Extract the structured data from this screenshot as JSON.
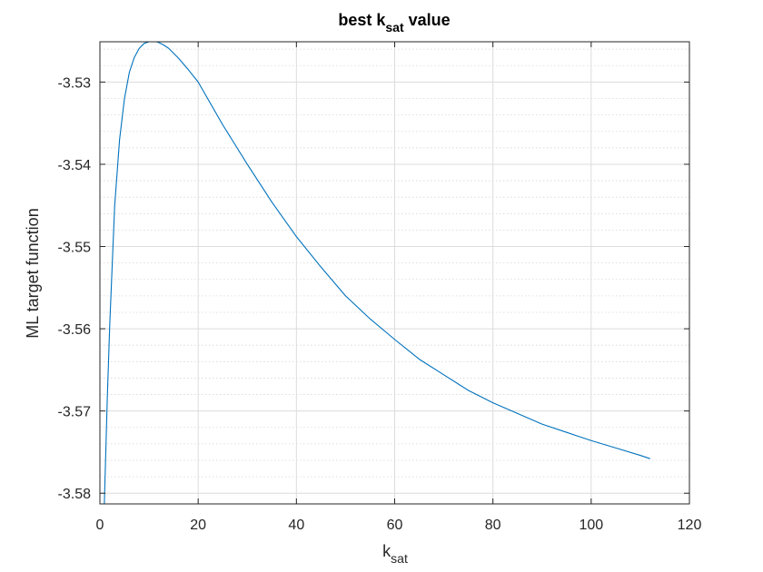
{
  "chart_data": {
    "type": "line",
    "title": {
      "main": "best k",
      "sub": "sat",
      "suffix": " value"
    },
    "xlabel": {
      "main": "k",
      "sub": "sat"
    },
    "ylabel": "ML target function",
    "xlim": [
      0,
      120
    ],
    "ylim": [
      -3.5813,
      -3.5251
    ],
    "xticks": [
      0,
      20,
      40,
      60,
      80,
      100,
      120
    ],
    "xtick_labels": [
      "0",
      "20",
      "40",
      "60",
      "80",
      "100",
      "120"
    ],
    "yticks": [
      -3.58,
      -3.57,
      -3.56,
      -3.55,
      -3.54,
      -3.53
    ],
    "ytick_labels": [
      "-3.58",
      "-3.57",
      "-3.56",
      "-3.55",
      "-3.54",
      "-3.53"
    ],
    "y_minor_step": 0.002,
    "grid": true,
    "minor_grid_y": true,
    "box": true,
    "series": [
      {
        "color": "#0072BD",
        "x": [
          0.9,
          1.5,
          2,
          3,
          4,
          5,
          6,
          7,
          8,
          9,
          10,
          11,
          11.5,
          12,
          13,
          14,
          16,
          18,
          20,
          25,
          30,
          35,
          40,
          45,
          50,
          55,
          60,
          65,
          70,
          75,
          80,
          85,
          90,
          95,
          100,
          105,
          110,
          112
        ],
        "y": [
          -3.5813,
          -3.5685,
          -3.5595,
          -3.5451,
          -3.537,
          -3.532,
          -3.5288,
          -3.527,
          -3.5259,
          -3.5253,
          -3.5251,
          -3.5251,
          -3.5251,
          -3.5252,
          -3.5255,
          -3.5259,
          -3.5271,
          -3.5285,
          -3.53,
          -3.5352,
          -3.54,
          -3.5446,
          -3.5488,
          -3.5525,
          -3.556,
          -3.5588,
          -3.5613,
          -3.5637,
          -3.5656,
          -3.5675,
          -3.569,
          -3.5703,
          -3.5716,
          -3.5726,
          -3.5736,
          -3.5745,
          -3.5754,
          -3.5758
        ]
      }
    ]
  }
}
